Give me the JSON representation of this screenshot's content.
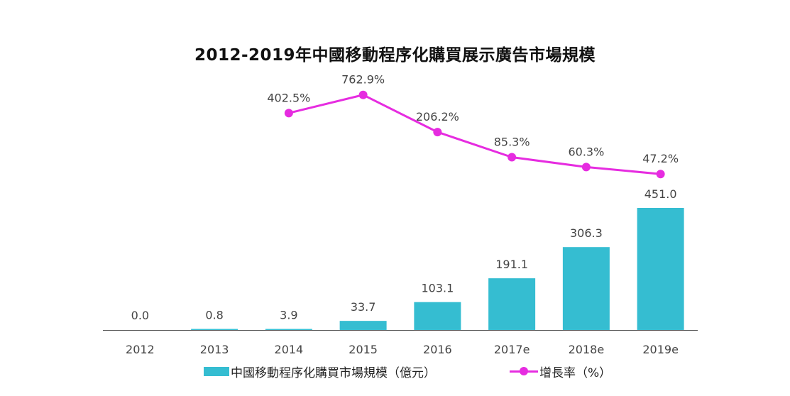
{
  "chart_data": {
    "type": "bar",
    "title": "2012-2019年中國移動程序化購買展示廣告市場規模",
    "categories": [
      "2012",
      "2013",
      "2014",
      "2015",
      "2016",
      "2017e",
      "2018e",
      "2019e"
    ],
    "series": [
      {
        "name": "中國移動程序化購買市場規模（億元）",
        "type": "bar",
        "color": "#35bdd1",
        "values": [
          0.0,
          0.8,
          3.9,
          33.7,
          103.1,
          191.1,
          306.3,
          451.0
        ],
        "labels": [
          "0.0",
          "0.8",
          "3.9",
          "33.7",
          "103.1",
          "191.1",
          "306.3",
          "451.0"
        ]
      },
      {
        "name": "增長率（%）",
        "type": "line",
        "color": "#e62ce0",
        "values": [
          null,
          null,
          402.5,
          762.9,
          206.2,
          85.3,
          60.3,
          47.2
        ],
        "labels": [
          "",
          "",
          "402.5%",
          "762.9%",
          "206.2%",
          "85.3%",
          "60.3%",
          "47.2%"
        ]
      }
    ],
    "grid": false,
    "legend": "bottom"
  }
}
